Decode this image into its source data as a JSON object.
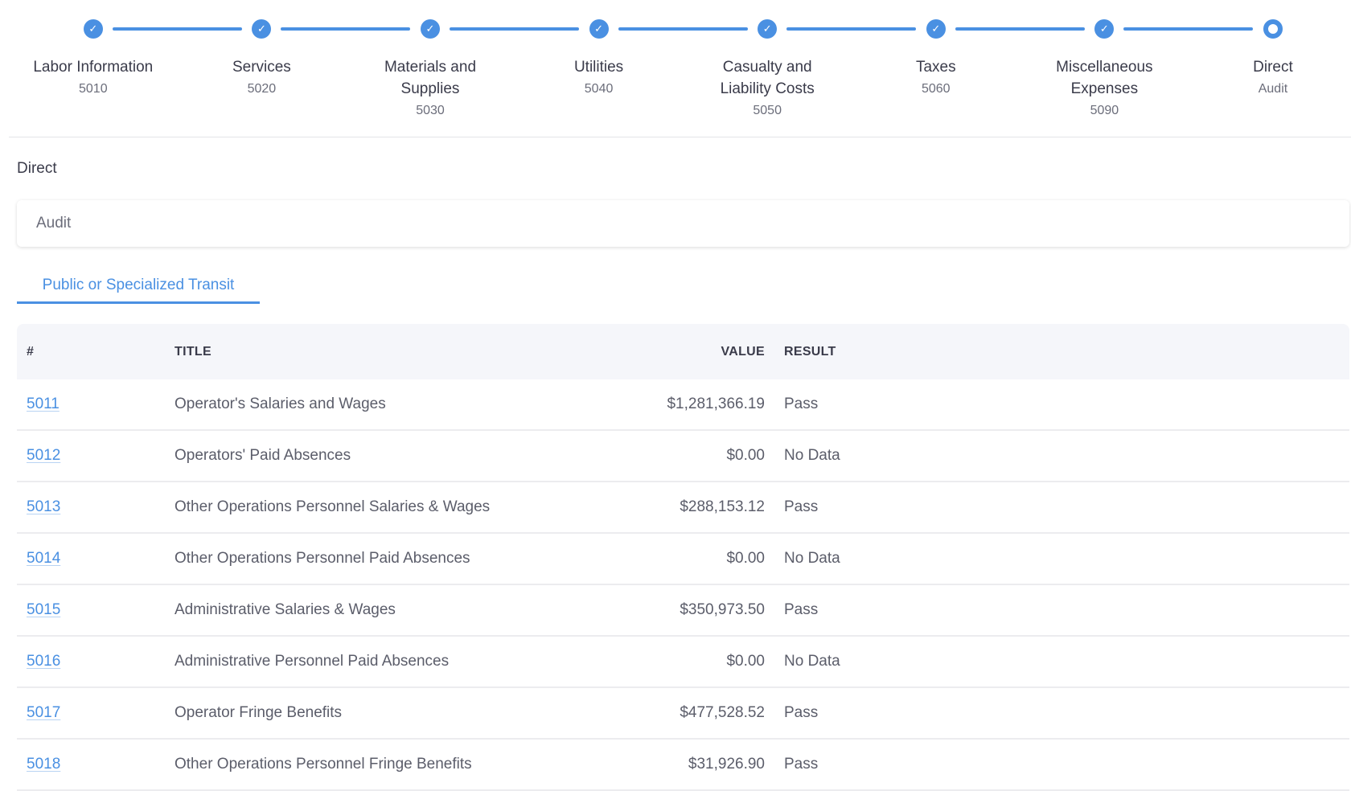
{
  "stepper": [
    {
      "label": "Labor Information",
      "sub": "5010",
      "state": "done"
    },
    {
      "label": "Services",
      "sub": "5020",
      "state": "done"
    },
    {
      "label": "Materials and Supplies",
      "sub": "5030",
      "state": "done"
    },
    {
      "label": "Utilities",
      "sub": "5040",
      "state": "done"
    },
    {
      "label": "Casualty and Liability Costs",
      "sub": "5050",
      "state": "done"
    },
    {
      "label": "Taxes",
      "sub": "5060",
      "state": "done"
    },
    {
      "label": "Miscellaneous Expenses",
      "sub": "5090",
      "state": "done"
    },
    {
      "label": "Direct",
      "sub": "Audit",
      "state": "current"
    }
  ],
  "section": {
    "title": "Direct",
    "audit_value": "Audit"
  },
  "tab": {
    "label": "Public or Specialized Transit"
  },
  "table": {
    "headers": {
      "num": "#",
      "title": "TITLE",
      "value": "VALUE",
      "result": "RESULT"
    },
    "rows": [
      {
        "num": "5011",
        "title": "Operator's Salaries and Wages",
        "value": "$1,281,366.19",
        "result": "Pass"
      },
      {
        "num": "5012",
        "title": "Operators' Paid Absences",
        "value": "$0.00",
        "result": "No Data"
      },
      {
        "num": "5013",
        "title": "Other Operations Personnel Salaries & Wages",
        "value": "$288,153.12",
        "result": "Pass"
      },
      {
        "num": "5014",
        "title": "Other Operations Personnel Paid Absences",
        "value": "$0.00",
        "result": "No Data"
      },
      {
        "num": "5015",
        "title": "Administrative Salaries & Wages",
        "value": "$350,973.50",
        "result": "Pass"
      },
      {
        "num": "5016",
        "title": "Administrative Personnel Paid Absences",
        "value": "$0.00",
        "result": "No Data"
      },
      {
        "num": "5017",
        "title": "Operator Fringe Benefits",
        "value": "$477,528.52",
        "result": "Pass"
      },
      {
        "num": "5018",
        "title": "Other Operations Personnel Fringe Benefits",
        "value": "$31,926.90",
        "result": "Pass"
      }
    ]
  },
  "colors": {
    "accent": "#4a90e2"
  }
}
